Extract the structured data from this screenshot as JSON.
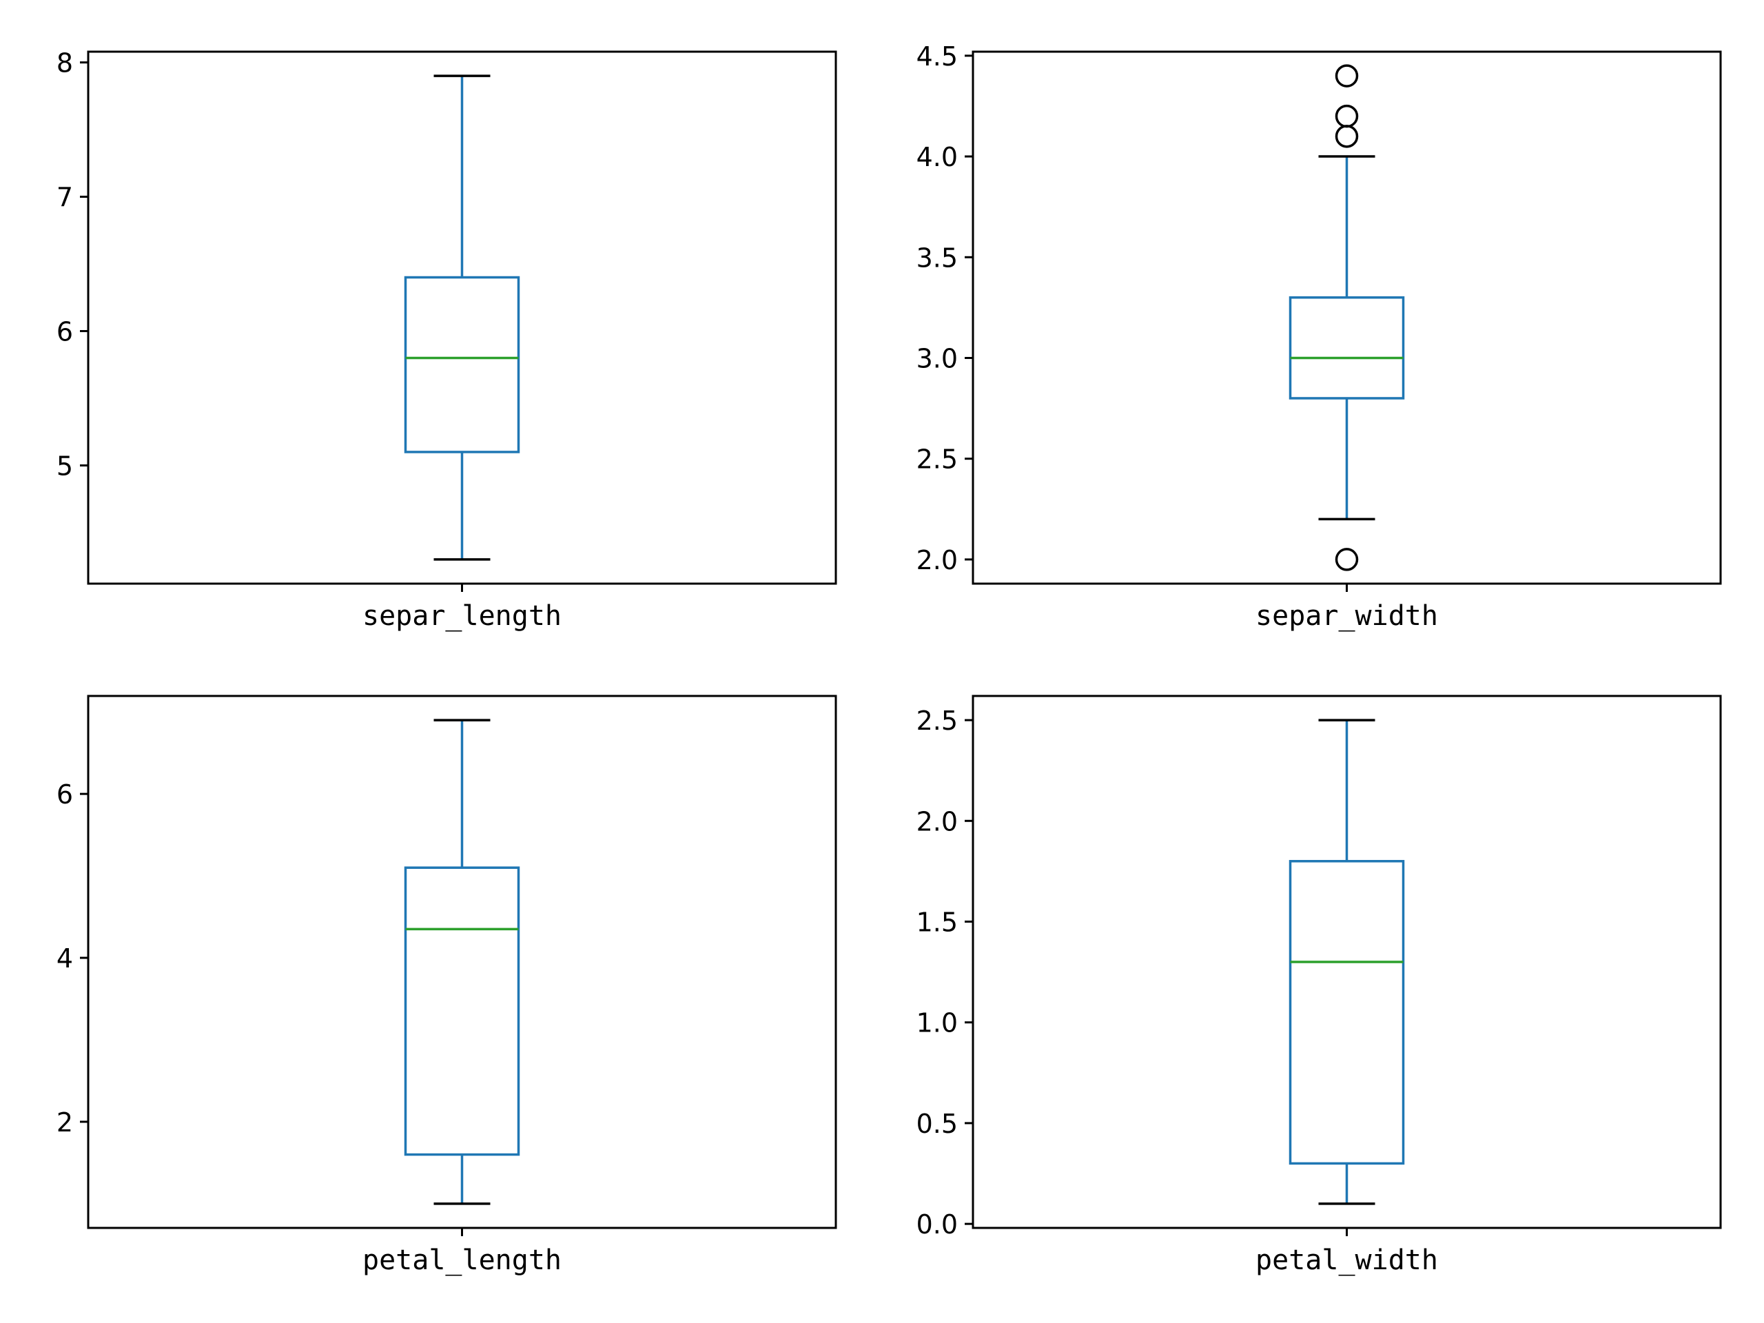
{
  "chart_data": [
    {
      "type": "box",
      "categories": [
        "separ_length"
      ],
      "ylim": [
        4.12,
        8.08
      ],
      "yticks": [
        5,
        6,
        7,
        8
      ],
      "ytick_labels": [
        "5",
        "6",
        "7",
        "8"
      ],
      "box": {
        "whisker_low": 4.3,
        "q1": 5.1,
        "median": 5.8,
        "q3": 6.4,
        "whisker_high": 7.9,
        "outliers": []
      },
      "grid": false
    },
    {
      "type": "box",
      "categories": [
        "separ_width"
      ],
      "ylim": [
        1.88,
        4.52
      ],
      "yticks": [
        2.0,
        2.5,
        3.0,
        3.5,
        4.0,
        4.5
      ],
      "ytick_labels": [
        "2.0",
        "2.5",
        "3.0",
        "3.5",
        "4.0",
        "4.5"
      ],
      "box": {
        "whisker_low": 2.2,
        "q1": 2.8,
        "median": 3.0,
        "q3": 3.3,
        "whisker_high": 4.0,
        "outliers": [
          2.0,
          4.1,
          4.2,
          4.4
        ]
      },
      "grid": false
    },
    {
      "type": "box",
      "categories": [
        "petal_length"
      ],
      "ylim": [
        0.705,
        7.195
      ],
      "yticks": [
        2,
        4,
        6
      ],
      "ytick_labels": [
        "2",
        "4",
        "6"
      ],
      "box": {
        "whisker_low": 1.0,
        "q1": 1.6,
        "median": 4.35,
        "q3": 5.1,
        "whisker_high": 6.9,
        "outliers": []
      },
      "grid": false
    },
    {
      "type": "box",
      "categories": [
        "petal_width"
      ],
      "ylim": [
        -0.02,
        2.62
      ],
      "yticks": [
        0.0,
        0.5,
        1.0,
        1.5,
        2.0,
        2.5
      ],
      "ytick_labels": [
        "0.0",
        "0.5",
        "1.0",
        "1.5",
        "2.0",
        "2.5"
      ],
      "box": {
        "whisker_low": 0.1,
        "q1": 0.3,
        "median": 1.3,
        "q3": 1.8,
        "whisker_high": 2.5,
        "outliers": []
      },
      "grid": false
    }
  ],
  "colors": {
    "box": "#1f77b4",
    "median": "#2ca02c",
    "whisker_cap": "#000000",
    "outlier": "#000000",
    "axes": "#000000"
  }
}
